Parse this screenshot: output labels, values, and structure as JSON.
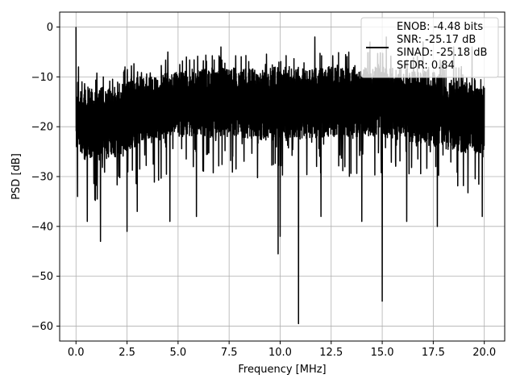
{
  "chart_data": {
    "type": "line",
    "title": "",
    "xlabel": "Frequency [MHz]",
    "ylabel": "PSD [dB]",
    "xlim": [
      -0.8,
      21.0
    ],
    "ylim": [
      -63.0,
      3.0
    ],
    "x_ticks": [
      0.0,
      2.5,
      5.0,
      7.5,
      10.0,
      12.5,
      15.0,
      17.5,
      20.0
    ],
    "x_tick_labels": [
      "0.0",
      "2.5",
      "5.0",
      "7.5",
      "10.0",
      "12.5",
      "15.0",
      "17.5",
      "20.0"
    ],
    "y_ticks": [
      0,
      -10,
      -20,
      -30,
      -40,
      -50,
      -60
    ],
    "y_tick_labels": [
      "0",
      "−10",
      "−20",
      "−30",
      "−40",
      "−50",
      "−60"
    ],
    "grid": true,
    "legend_position": "top-right",
    "legend_lines": [
      "ENOB: -4.48 bits",
      "SNR: -25.17 dB",
      "SINAD: -25.18 dB",
      "SFDR: 0.84"
    ],
    "series_color": "#000000",
    "series": [
      {
        "x_start": 0.0,
        "x_end": 20.0,
        "noise_band_upper": [
          [
            0.0,
            -14
          ],
          [
            0.3,
            -12
          ],
          [
            1.0,
            -12
          ],
          [
            2.0,
            -12
          ],
          [
            3.0,
            -10
          ],
          [
            5.0,
            -9
          ],
          [
            7.5,
            -8
          ],
          [
            10.0,
            -8
          ],
          [
            12.5,
            -8
          ],
          [
            15.0,
            -8
          ],
          [
            17.5,
            -9
          ],
          [
            20.0,
            -12
          ]
        ],
        "noise_band_lower": [
          [
            0.0,
            -24
          ],
          [
            0.5,
            -27
          ],
          [
            1.0,
            -27
          ],
          [
            2.0,
            -26
          ],
          [
            3.0,
            -24
          ],
          [
            5.0,
            -22
          ],
          [
            7.5,
            -22
          ],
          [
            10.0,
            -23
          ],
          [
            12.5,
            -22
          ],
          [
            15.0,
            -22
          ],
          [
            17.5,
            -24
          ],
          [
            20.0,
            -26
          ]
        ],
        "peaks": [
          [
            0.0,
            0.0
          ],
          [
            0.12,
            -8
          ],
          [
            2.4,
            -8
          ],
          [
            4.5,
            -5
          ],
          [
            7.1,
            -4
          ],
          [
            9.9,
            -2
          ],
          [
            10.9,
            -4
          ],
          [
            11.7,
            -2
          ],
          [
            14.4,
            -3
          ],
          [
            15.2,
            -2
          ],
          [
            17.0,
            -3
          ],
          [
            18.5,
            -4
          ],
          [
            19.4,
            -4
          ]
        ],
        "dips": [
          [
            0.08,
            -34
          ],
          [
            0.55,
            -39
          ],
          [
            1.2,
            -43
          ],
          [
            2.5,
            -41
          ],
          [
            3.0,
            -37
          ],
          [
            4.6,
            -39
          ],
          [
            5.9,
            -38
          ],
          [
            9.9,
            -45.5
          ],
          [
            10.0,
            -42
          ],
          [
            10.9,
            -59.5
          ],
          [
            12.0,
            -38
          ],
          [
            14.0,
            -39
          ],
          [
            15.0,
            -55
          ],
          [
            16.2,
            -39
          ],
          [
            17.7,
            -40
          ],
          [
            19.9,
            -38
          ]
        ]
      }
    ]
  }
}
